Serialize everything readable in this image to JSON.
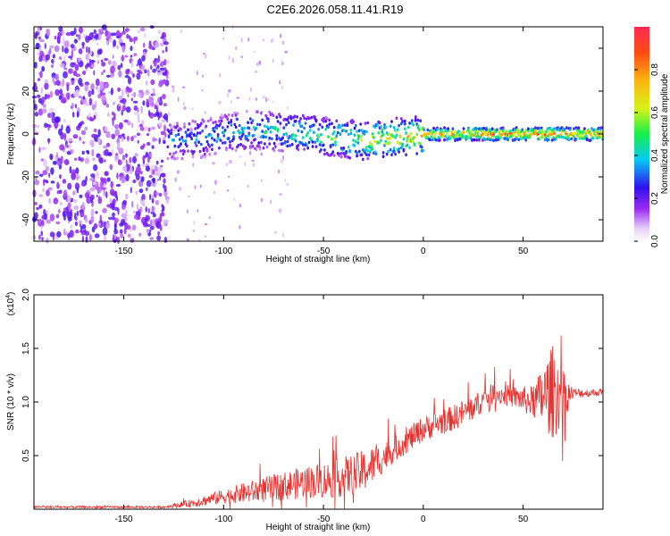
{
  "title": "C2E6.2026.058.11.41.R19",
  "chart_data": [
    {
      "type": "heatmap",
      "xlabel": "Height of straight line (km)",
      "ylabel": "Frequency (Hz)",
      "xlim": [
        -195,
        90
      ],
      "ylim": [
        -50,
        50
      ],
      "xticks": [
        -150,
        -100,
        -50,
        0,
        50
      ],
      "yticks": [
        -40,
        -20,
        0,
        20,
        40
      ],
      "colorbar": {
        "label": "Normalized spectral amplitude",
        "range": [
          0,
          1
        ],
        "ticks": [
          "0.0",
          "0.2",
          "0.4",
          "0.6",
          "0.8"
        ],
        "colormap": "rainbow (white→violet→blue→cyan→green→yellow→orange→red)"
      },
      "ridge": [
        {
          "x": -128,
          "y": -3,
          "amp": 0.35
        },
        {
          "x": -110,
          "y": -2,
          "amp": 0.4
        },
        {
          "x": -90,
          "y": 2,
          "amp": 0.45
        },
        {
          "x": -70,
          "y": 1,
          "amp": 0.5
        },
        {
          "x": -50,
          "y": -1,
          "amp": 0.55
        },
        {
          "x": -30,
          "y": -3,
          "amp": 0.65
        },
        {
          "x": -10,
          "y": -1,
          "amp": 0.75
        },
        {
          "x": 10,
          "y": 0,
          "amp": 0.85
        },
        {
          "x": 40,
          "y": 0,
          "amp": 0.95
        },
        {
          "x": 65,
          "y": 0,
          "amp": 0.95
        },
        {
          "x": 90,
          "y": 0,
          "amp": 0.9
        }
      ],
      "noise_region": {
        "x_from": -195,
        "x_to": -128,
        "amplitude": "0.1-0.25"
      }
    },
    {
      "type": "line",
      "xlabel": "Height of straight line (km)",
      "ylabel": "SNR (10 * v/v)",
      "yscale_note": "(x10",
      "yscale_exp": "4",
      "xlim": [
        -195,
        90
      ],
      "ylim": [
        0,
        2.0
      ],
      "xticks": [
        -150,
        -100,
        -50,
        0,
        50
      ],
      "yticks": [
        "0.5",
        "1.0",
        "1.5",
        "2.0"
      ],
      "series": [
        {
          "color": "#e8312e",
          "envelope": [
            {
              "x": -195,
              "mean": 0.02,
              "noise": 0.01
            },
            {
              "x": -130,
              "mean": 0.02,
              "noise": 0.01
            },
            {
              "x": -115,
              "mean": 0.06,
              "noise": 0.04
            },
            {
              "x": -100,
              "mean": 0.12,
              "noise": 0.07
            },
            {
              "x": -80,
              "mean": 0.18,
              "noise": 0.12
            },
            {
              "x": -60,
              "mean": 0.25,
              "noise": 0.15
            },
            {
              "x": -45,
              "mean": 0.28,
              "noise": 0.18
            },
            {
              "x": -30,
              "mean": 0.35,
              "noise": 0.2
            },
            {
              "x": -15,
              "mean": 0.55,
              "noise": 0.12
            },
            {
              "x": 0,
              "mean": 0.75,
              "noise": 0.12
            },
            {
              "x": 15,
              "mean": 0.85,
              "noise": 0.12
            },
            {
              "x": 25,
              "mean": 0.95,
              "noise": 0.12
            },
            {
              "x": 35,
              "mean": 1.08,
              "noise": 0.1
            },
            {
              "x": 45,
              "mean": 1.05,
              "noise": 0.1
            },
            {
              "x": 55,
              "mean": 1.0,
              "noise": 0.15
            },
            {
              "x": 60,
              "mean": 1.05,
              "noise": 0.3
            },
            {
              "x": 65,
              "mean": 1.1,
              "noise": 0.45
            },
            {
              "x": 70,
              "mean": 1.05,
              "noise": 0.25
            },
            {
              "x": 75,
              "mean": 1.08,
              "noise": 0.05
            },
            {
              "x": 90,
              "mean": 1.09,
              "noise": 0.03
            }
          ]
        }
      ]
    }
  ]
}
